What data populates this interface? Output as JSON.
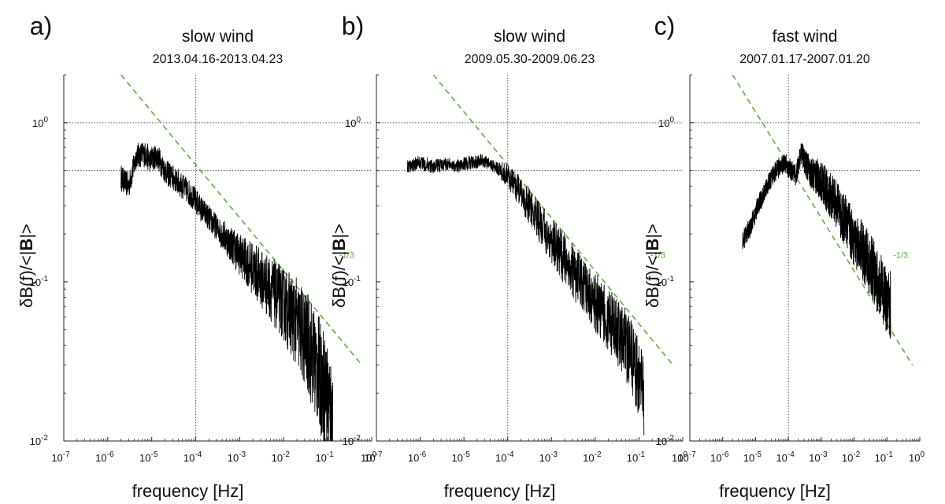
{
  "chart_data": [
    {
      "type": "line",
      "panel_label": "a)",
      "title": "slow wind",
      "subtitle": "2013.04.16-2013.04.23",
      "xlabel": "frequency [Hz]",
      "ylabel_parts": [
        "δB(f)/<|",
        "B",
        "|>"
      ],
      "x_scale": "log",
      "y_scale": "log",
      "xlim": [
        1e-07,
        1
      ],
      "ylim": [
        0.01,
        2
      ],
      "x_tick_labels": [
        {
          "b": "10",
          "e": "-7"
        },
        {
          "b": "10",
          "e": "-6"
        },
        {
          "b": "10",
          "e": "-5"
        },
        {
          "b": "10",
          "e": "-4"
        },
        {
          "b": "10",
          "e": "-3"
        },
        {
          "b": "10",
          "e": "-2"
        },
        {
          "b": "10",
          "e": "-1"
        },
        {
          "b": "10",
          "e": "0"
        }
      ],
      "y_tick_labels": [
        {
          "b": "10",
          "e": "0"
        },
        {
          "b": "10",
          "e": "-1"
        },
        {
          "b": "10",
          "e": "-2"
        }
      ],
      "reference_lines": {
        "x": [
          0.0001
        ],
        "y": [
          1.0,
          0.5
        ]
      },
      "slope_line": {
        "label": "-1/3",
        "color": "#5cb33b",
        "points": [
          [
            2e-06,
            2.0
          ],
          [
            0.6,
            0.03
          ]
        ],
        "label_at": [
          0.3,
          0.15
        ]
      },
      "spectrum": {
        "color": "#000000",
        "points": [
          [
            2e-06,
            0.45
          ],
          [
            3e-06,
            0.4
          ],
          [
            4.5e-06,
            0.62
          ],
          [
            7e-06,
            0.64
          ],
          [
            9e-06,
            0.58
          ],
          [
            1.3e-05,
            0.62
          ],
          [
            2e-05,
            0.5
          ],
          [
            3e-05,
            0.45
          ],
          [
            5e-05,
            0.4
          ],
          [
            8e-05,
            0.35
          ],
          [
            0.00012,
            0.3
          ],
          [
            0.0002,
            0.25
          ],
          [
            0.0004,
            0.2
          ],
          [
            0.0008,
            0.16
          ],
          [
            0.002,
            0.12
          ],
          [
            0.005,
            0.09
          ],
          [
            0.01,
            0.072
          ],
          [
            0.02,
            0.055
          ],
          [
            0.04,
            0.038
          ],
          [
            0.07,
            0.025
          ],
          [
            0.1,
            0.018
          ],
          [
            0.13,
            0.013
          ]
        ],
        "band": [
          [
            0.0003,
            1.2
          ],
          [
            0.001,
            1.35
          ],
          [
            0.01,
            1.7
          ],
          [
            0.05,
            2.2
          ],
          [
            0.13,
            2.5
          ]
        ]
      }
    },
    {
      "type": "line",
      "panel_label": "b)",
      "title": "slow wind",
      "subtitle": "2009.05.30-2009.06.23",
      "xlabel": "frequency [Hz]",
      "ylabel_parts": [
        "δB(f)/<|",
        "B",
        "|>"
      ],
      "x_scale": "log",
      "y_scale": "log",
      "xlim": [
        1e-07,
        1
      ],
      "ylim": [
        0.01,
        2
      ],
      "x_tick_labels": [
        {
          "b": "10",
          "e": "-7"
        },
        {
          "b": "10",
          "e": "-6"
        },
        {
          "b": "10",
          "e": "-5"
        },
        {
          "b": "10",
          "e": "-4"
        },
        {
          "b": "10",
          "e": "-3"
        },
        {
          "b": "10",
          "e": "-2"
        },
        {
          "b": "10",
          "e": "-1"
        },
        {
          "b": "10",
          "e": "0"
        }
      ],
      "y_tick_labels": [
        {
          "b": "10",
          "e": "0"
        },
        {
          "b": "10",
          "e": "-1"
        },
        {
          "b": "10",
          "e": "-2"
        }
      ],
      "reference_lines": {
        "x": [
          0.0001
        ],
        "y": [
          1.0,
          0.5
        ]
      },
      "slope_line": {
        "label": "-1/3",
        "color": "#5cb33b",
        "points": [
          [
            2e-06,
            2.0
          ],
          [
            0.6,
            0.03
          ]
        ],
        "label_at": [
          0.3,
          0.15
        ]
      },
      "spectrum": {
        "color": "#000000",
        "points": [
          [
            5e-07,
            0.53
          ],
          [
            1e-06,
            0.56
          ],
          [
            2e-06,
            0.53
          ],
          [
            4e-06,
            0.55
          ],
          [
            8e-06,
            0.54
          ],
          [
            1.5e-05,
            0.56
          ],
          [
            2.5e-05,
            0.58
          ],
          [
            4e-05,
            0.55
          ],
          [
            7e-05,
            0.5
          ],
          [
            0.0001,
            0.46
          ],
          [
            0.0002,
            0.36
          ],
          [
            0.0004,
            0.27
          ],
          [
            0.0008,
            0.2
          ],
          [
            0.002,
            0.14
          ],
          [
            0.005,
            0.095
          ],
          [
            0.01,
            0.075
          ],
          [
            0.02,
            0.058
          ],
          [
            0.04,
            0.045
          ],
          [
            0.07,
            0.033
          ],
          [
            0.1,
            0.025
          ],
          [
            0.13,
            0.019
          ]
        ],
        "band": [
          [
            5e-05,
            1.1
          ],
          [
            0.0003,
            1.3
          ],
          [
            0.002,
            1.45
          ],
          [
            0.02,
            1.55
          ],
          [
            0.13,
            1.8
          ]
        ]
      }
    },
    {
      "type": "line",
      "panel_label": "c)",
      "title": "fast wind",
      "subtitle": "2007.01.17-2007.01.20",
      "xlabel": "frequency [Hz]",
      "ylabel_parts": [
        "δB(f)/<|",
        "B",
        "|>"
      ],
      "x_scale": "log",
      "y_scale": "log",
      "xlim": [
        1e-07,
        1
      ],
      "ylim": [
        0.01,
        2
      ],
      "x_tick_labels": [
        {
          "b": "10",
          "e": "-7"
        },
        {
          "b": "10",
          "e": "-6"
        },
        {
          "b": "10",
          "e": "-5"
        },
        {
          "b": "10",
          "e": "-4"
        },
        {
          "b": "10",
          "e": "-3"
        },
        {
          "b": "10",
          "e": "-2"
        },
        {
          "b": "10",
          "e": "-1"
        },
        {
          "b": "10",
          "e": "0"
        }
      ],
      "y_tick_labels": [
        {
          "b": "10",
          "e": "0"
        },
        {
          "b": "10",
          "e": "-1"
        },
        {
          "b": "10",
          "e": "-2"
        }
      ],
      "reference_lines": {
        "x": [
          0.0001
        ],
        "y": [
          1.0,
          0.5
        ]
      },
      "slope_line": {
        "label": "-1/3",
        "color": "#5cb33b",
        "points": [
          [
            2e-06,
            2.0
          ],
          [
            0.6,
            0.03
          ]
        ],
        "label_at": [
          0.3,
          0.15
        ]
      },
      "spectrum": {
        "color": "#000000",
        "points": [
          [
            4e-06,
            0.18
          ],
          [
            7e-06,
            0.22
          ],
          [
            1.2e-05,
            0.3
          ],
          [
            2e-05,
            0.38
          ],
          [
            3e-05,
            0.45
          ],
          [
            5e-05,
            0.52
          ],
          [
            8e-05,
            0.56
          ],
          [
            0.00012,
            0.5
          ],
          [
            0.00017,
            0.47
          ],
          [
            0.00025,
            0.65
          ],
          [
            0.00035,
            0.55
          ],
          [
            0.0005,
            0.48
          ],
          [
            0.0008,
            0.45
          ],
          [
            0.0015,
            0.38
          ],
          [
            0.003,
            0.3
          ],
          [
            0.006,
            0.23
          ],
          [
            0.01,
            0.19
          ],
          [
            0.02,
            0.15
          ],
          [
            0.04,
            0.115
          ],
          [
            0.07,
            0.09
          ],
          [
            0.1,
            0.075
          ],
          [
            0.13,
            0.07
          ]
        ],
        "band": [
          [
            0.0002,
            1.15
          ],
          [
            0.001,
            1.35
          ],
          [
            0.01,
            1.5
          ],
          [
            0.05,
            1.6
          ],
          [
            0.13,
            1.65
          ]
        ]
      }
    }
  ]
}
